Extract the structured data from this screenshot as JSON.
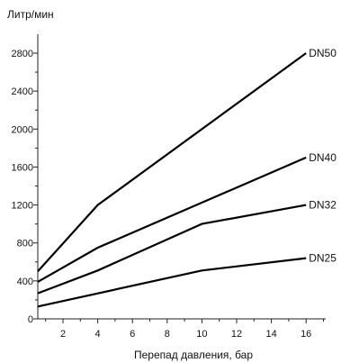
{
  "chart_data": {
    "type": "line",
    "ylabel": "Литр/мин",
    "xlabel": "Перепад давления, бар",
    "xlim": [
      0.5,
      17
    ],
    "ylim": [
      0,
      3000
    ],
    "xticks": [
      2,
      4,
      6,
      8,
      10,
      12,
      14,
      16
    ],
    "yticks": [
      0,
      400,
      800,
      1200,
      1600,
      2000,
      2400,
      2800
    ],
    "grid": false,
    "line_color": "#000000",
    "series": [
      {
        "name": "DN50",
        "x": [
          0.5,
          4,
          16
        ],
        "y": [
          500,
          1200,
          2800
        ]
      },
      {
        "name": "DN40",
        "x": [
          0.5,
          4,
          16
        ],
        "y": [
          390,
          750,
          1700
        ]
      },
      {
        "name": "DN32",
        "x": [
          0.5,
          4,
          10,
          16
        ],
        "y": [
          270,
          510,
          1000,
          1200
        ]
      },
      {
        "name": "DN25",
        "x": [
          0.5,
          10,
          16
        ],
        "y": [
          130,
          510,
          640
        ]
      }
    ]
  }
}
